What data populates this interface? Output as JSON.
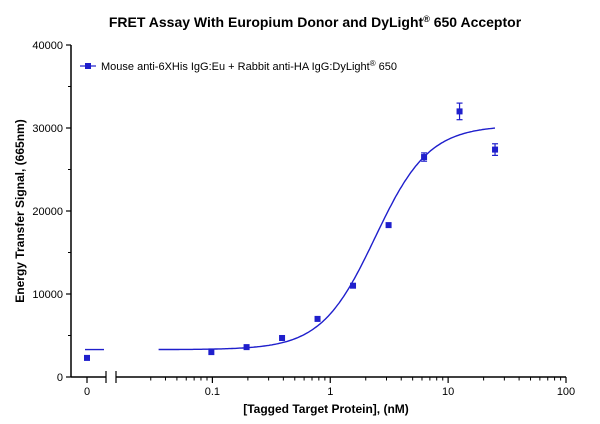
{
  "chart_data": {
    "type": "scatter",
    "title": "FRET Assay With Europium Donor and DyLight",
    "title_superscript": "®",
    "title_suffix": " 650 Acceptor",
    "xlabel": "[Tagged Target Protein], (nM)",
    "ylabel": "Energy Transfer Signal, (665nm)",
    "x_scale": "log",
    "x_axis_break": true,
    "xlim": [
      0.02,
      100
    ],
    "ylim": [
      0,
      40000
    ],
    "x_ticks": [
      {
        "value": 0,
        "label": "0"
      },
      {
        "value": 0.1,
        "label": "0.1"
      },
      {
        "value": 1,
        "label": "1"
      },
      {
        "value": 10,
        "label": "10"
      },
      {
        "value": 100,
        "label": "100"
      }
    ],
    "y_ticks": [
      {
        "value": 0,
        "label": "0"
      },
      {
        "value": 10000,
        "label": "10000"
      },
      {
        "value": 20000,
        "label": "20000"
      },
      {
        "value": 30000,
        "label": "30000"
      },
      {
        "value": 40000,
        "label": "40000"
      }
    ],
    "legend": {
      "position": "top-left",
      "text": "Mouse anti-6XHis IgG:Eu +  Rabbit anti-HA IgG:DyLight",
      "superscript": "®",
      "suffix": " 650"
    },
    "grid": false,
    "series": [
      {
        "name": "Mouse anti-6XHis IgG:Eu +  Rabbit anti-HA IgG:DyLight® 650",
        "color": "#1f1fcc",
        "marker": "square",
        "points": [
          {
            "x": 0,
            "y": 2300,
            "err": 0
          },
          {
            "x": 0.098,
            "y": 3000,
            "err": 0
          },
          {
            "x": 0.195,
            "y": 3600,
            "err": 0
          },
          {
            "x": 0.39,
            "y": 4700,
            "err": 0
          },
          {
            "x": 0.78,
            "y": 7000,
            "err": 0
          },
          {
            "x": 1.56,
            "y": 11000,
            "err": 0
          },
          {
            "x": 3.125,
            "y": 18300,
            "err": 0
          },
          {
            "x": 6.25,
            "y": 26500,
            "err": 500
          },
          {
            "x": 12.5,
            "y": 32000,
            "err": 1000
          },
          {
            "x": 25,
            "y": 27400,
            "err": 700
          }
        ],
        "fit": {
          "model": "sigmoidal",
          "bottom": 3300,
          "top": 30300,
          "ec50": 2.4,
          "hill": 1.9
        }
      }
    ]
  }
}
